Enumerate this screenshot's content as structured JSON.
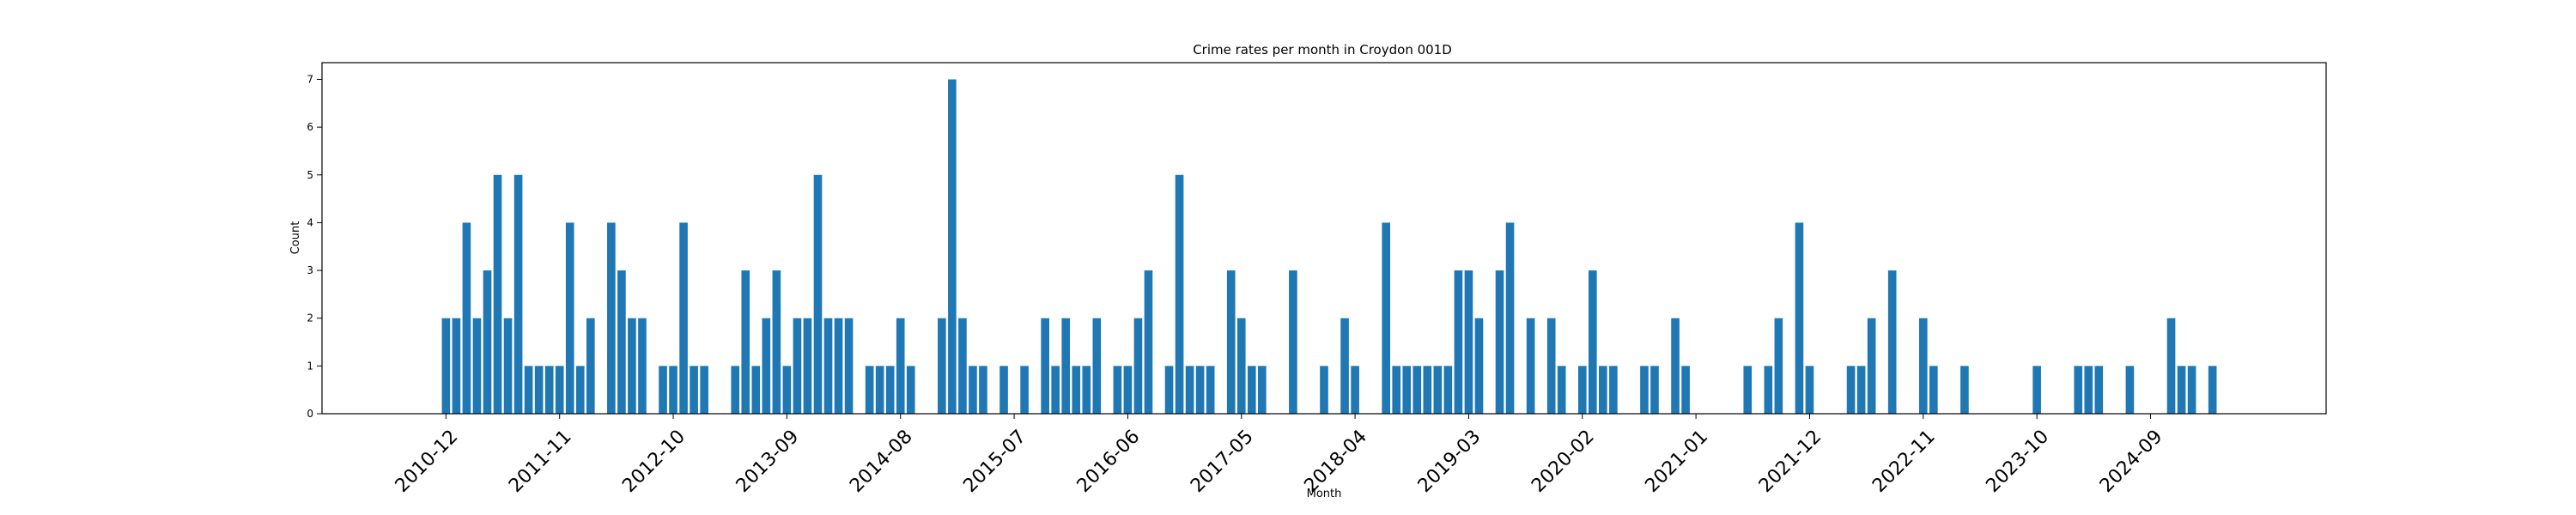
{
  "chart_data": {
    "type": "bar",
    "title": "Crime rates per month in Croydon 001D",
    "xlabel": "Month",
    "ylabel": "Count",
    "ylim": [
      0,
      7.35
    ],
    "yticks": [
      0,
      1,
      2,
      3,
      4,
      5,
      6,
      7
    ],
    "xlim": [
      "2009-12",
      "2026-02"
    ],
    "x_tick_labels": [
      "2010-12",
      "2011-11",
      "2012-10",
      "2013-09",
      "2014-08",
      "2015-07",
      "2016-06",
      "2017-05",
      "2018-04",
      "2019-03",
      "2020-02",
      "2021-01",
      "2021-12",
      "2022-11",
      "2023-10",
      "2024-09"
    ],
    "bar_color": "#1f77b4",
    "grid": false,
    "bars": [
      {
        "x": "2010-12",
        "y": 2
      },
      {
        "x": "2011-01",
        "y": 2
      },
      {
        "x": "2011-02",
        "y": 4
      },
      {
        "x": "2011-03",
        "y": 2
      },
      {
        "x": "2011-04",
        "y": 3
      },
      {
        "x": "2011-05",
        "y": 5
      },
      {
        "x": "2011-06",
        "y": 2
      },
      {
        "x": "2011-07",
        "y": 5
      },
      {
        "x": "2011-08",
        "y": 1
      },
      {
        "x": "2011-09",
        "y": 1
      },
      {
        "x": "2011-10",
        "y": 1
      },
      {
        "x": "2011-11",
        "y": 1
      },
      {
        "x": "2011-12",
        "y": 4
      },
      {
        "x": "2012-01",
        "y": 1
      },
      {
        "x": "2012-02",
        "y": 2
      },
      {
        "x": "2012-04",
        "y": 4
      },
      {
        "x": "2012-05",
        "y": 3
      },
      {
        "x": "2012-06",
        "y": 2
      },
      {
        "x": "2012-07",
        "y": 2
      },
      {
        "x": "2012-09",
        "y": 1
      },
      {
        "x": "2012-10",
        "y": 1
      },
      {
        "x": "2012-11",
        "y": 4
      },
      {
        "x": "2012-12",
        "y": 1
      },
      {
        "x": "2013-01",
        "y": 1
      },
      {
        "x": "2013-04",
        "y": 1
      },
      {
        "x": "2013-05",
        "y": 3
      },
      {
        "x": "2013-06",
        "y": 1
      },
      {
        "x": "2013-07",
        "y": 2
      },
      {
        "x": "2013-08",
        "y": 3
      },
      {
        "x": "2013-09",
        "y": 1
      },
      {
        "x": "2013-10",
        "y": 2
      },
      {
        "x": "2013-11",
        "y": 2
      },
      {
        "x": "2013-12",
        "y": 5
      },
      {
        "x": "2014-01",
        "y": 2
      },
      {
        "x": "2014-02",
        "y": 2
      },
      {
        "x": "2014-03",
        "y": 2
      },
      {
        "x": "2014-05",
        "y": 1
      },
      {
        "x": "2014-06",
        "y": 1
      },
      {
        "x": "2014-07",
        "y": 1
      },
      {
        "x": "2014-08",
        "y": 2
      },
      {
        "x": "2014-09",
        "y": 1
      },
      {
        "x": "2014-12",
        "y": 2
      },
      {
        "x": "2015-01",
        "y": 7
      },
      {
        "x": "2015-02",
        "y": 2
      },
      {
        "x": "2015-03",
        "y": 1
      },
      {
        "x": "2015-04",
        "y": 1
      },
      {
        "x": "2015-06",
        "y": 1
      },
      {
        "x": "2015-08",
        "y": 1
      },
      {
        "x": "2015-10",
        "y": 2
      },
      {
        "x": "2015-11",
        "y": 1
      },
      {
        "x": "2015-12",
        "y": 2
      },
      {
        "x": "2016-01",
        "y": 1
      },
      {
        "x": "2016-02",
        "y": 1
      },
      {
        "x": "2016-03",
        "y": 2
      },
      {
        "x": "2016-05",
        "y": 1
      },
      {
        "x": "2016-06",
        "y": 1
      },
      {
        "x": "2016-07",
        "y": 2
      },
      {
        "x": "2016-08",
        "y": 3
      },
      {
        "x": "2016-10",
        "y": 1
      },
      {
        "x": "2016-11",
        "y": 5
      },
      {
        "x": "2016-12",
        "y": 1
      },
      {
        "x": "2017-01",
        "y": 1
      },
      {
        "x": "2017-02",
        "y": 1
      },
      {
        "x": "2017-04",
        "y": 3
      },
      {
        "x": "2017-05",
        "y": 2
      },
      {
        "x": "2017-06",
        "y": 1
      },
      {
        "x": "2017-07",
        "y": 1
      },
      {
        "x": "2017-10",
        "y": 3
      },
      {
        "x": "2018-01",
        "y": 1
      },
      {
        "x": "2018-03",
        "y": 2
      },
      {
        "x": "2018-04",
        "y": 1
      },
      {
        "x": "2018-07",
        "y": 4
      },
      {
        "x": "2018-08",
        "y": 1
      },
      {
        "x": "2018-09",
        "y": 1
      },
      {
        "x": "2018-10",
        "y": 1
      },
      {
        "x": "2018-11",
        "y": 1
      },
      {
        "x": "2018-12",
        "y": 1
      },
      {
        "x": "2019-01",
        "y": 1
      },
      {
        "x": "2019-02",
        "y": 3
      },
      {
        "x": "2019-03",
        "y": 3
      },
      {
        "x": "2019-04",
        "y": 2
      },
      {
        "x": "2019-06",
        "y": 3
      },
      {
        "x": "2019-07",
        "y": 4
      },
      {
        "x": "2019-09",
        "y": 2
      },
      {
        "x": "2019-11",
        "y": 2
      },
      {
        "x": "2019-12",
        "y": 1
      },
      {
        "x": "2020-02",
        "y": 1
      },
      {
        "x": "2020-03",
        "y": 3
      },
      {
        "x": "2020-04",
        "y": 1
      },
      {
        "x": "2020-05",
        "y": 1
      },
      {
        "x": "2020-08",
        "y": 1
      },
      {
        "x": "2020-09",
        "y": 1
      },
      {
        "x": "2020-11",
        "y": 2
      },
      {
        "x": "2020-12",
        "y": 1
      },
      {
        "x": "2021-06",
        "y": 1
      },
      {
        "x": "2021-08",
        "y": 1
      },
      {
        "x": "2021-09",
        "y": 2
      },
      {
        "x": "2021-11",
        "y": 4
      },
      {
        "x": "2021-12",
        "y": 1
      },
      {
        "x": "2022-04",
        "y": 1
      },
      {
        "x": "2022-05",
        "y": 1
      },
      {
        "x": "2022-06",
        "y": 2
      },
      {
        "x": "2022-08",
        "y": 3
      },
      {
        "x": "2022-11",
        "y": 2
      },
      {
        "x": "2022-12",
        "y": 1
      },
      {
        "x": "2023-03",
        "y": 1
      },
      {
        "x": "2023-10",
        "y": 1
      },
      {
        "x": "2024-02",
        "y": 1
      },
      {
        "x": "2024-03",
        "y": 1
      },
      {
        "x": "2024-04",
        "y": 1
      },
      {
        "x": "2024-07",
        "y": 1
      },
      {
        "x": "2024-11",
        "y": 2
      },
      {
        "x": "2024-12",
        "y": 1
      },
      {
        "x": "2025-01",
        "y": 1
      },
      {
        "x": "2025-03",
        "y": 1
      }
    ]
  }
}
